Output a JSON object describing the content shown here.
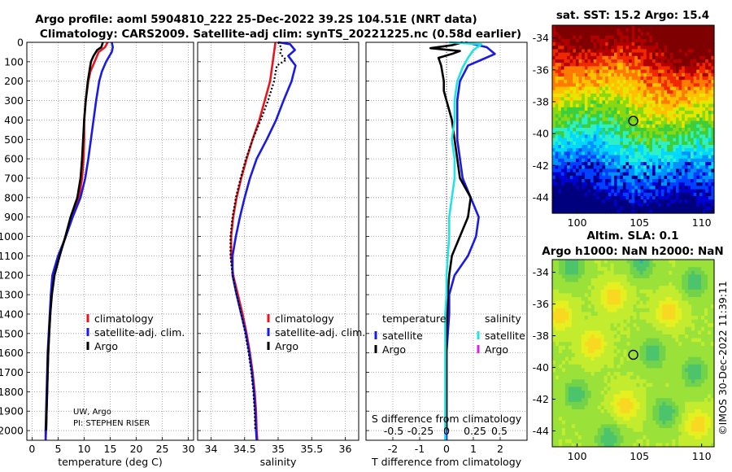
{
  "title": {
    "line1": "Argo profile: aoml 5904810_222 25-Dec-2022 39.2S 104.51E (NRT data)",
    "line2": "Climatology: CARS2009. Satellite-adj clim: synTS_20221225.nc (0.58d earlier)"
  },
  "credits": {
    "line1": "UW, Argo",
    "line2": "PI: STEPHEN RISER"
  },
  "stamp": "©IMOS 30-Dec-2022 11:39:11",
  "colors": {
    "climatology": "#e8141e",
    "satellite": "#1a1ae6",
    "argo": "#000000",
    "sat_diff_s": "#22e3e3",
    "argo_diff_s": "#e020e0"
  },
  "chart_data": [
    {
      "name": "temperature-profile",
      "type": "line",
      "xlabel": "temperature (deg C)",
      "xlim": [
        -1,
        31
      ],
      "xticks": [
        0,
        5,
        10,
        15,
        20,
        25,
        30
      ],
      "ylim": [
        0,
        2050
      ],
      "yticks": [
        0,
        100,
        200,
        300,
        400,
        500,
        600,
        700,
        800,
        900,
        1000,
        1100,
        1200,
        1300,
        1400,
        1500,
        1600,
        1700,
        1800,
        1900,
        2000
      ],
      "grid": true,
      "legend": {
        "position": "lower-right",
        "entries": [
          "climatology",
          "satellite-adj. clim.",
          "Argo"
        ]
      },
      "series": [
        {
          "name": "climatology",
          "color": "#e8141e",
          "dotted": false,
          "points": [
            [
              14.5,
              0
            ],
            [
              14.0,
              25
            ],
            [
              12.8,
              50
            ],
            [
              12.0,
              100
            ],
            [
              11.2,
              150
            ],
            [
              10.8,
              200
            ],
            [
              10.3,
              300
            ],
            [
              10.0,
              400
            ],
            [
              10.0,
              500
            ],
            [
              9.9,
              600
            ],
            [
              9.6,
              700
            ],
            [
              9.0,
              800
            ],
            [
              7.6,
              900
            ],
            [
              6.5,
              1000
            ],
            [
              5.2,
              1100
            ],
            [
              4.0,
              1200
            ],
            [
              3.7,
              1300
            ],
            [
              3.5,
              1400
            ],
            [
              3.3,
              1500
            ],
            [
              3.1,
              1600
            ],
            [
              3.0,
              1700
            ],
            [
              2.9,
              1800
            ],
            [
              2.8,
              1900
            ],
            [
              2.7,
              2000
            ],
            [
              2.6,
              2050
            ]
          ]
        },
        {
          "name": "satellite-adj. clim.",
          "color": "#1a1ae6",
          "dotted": false,
          "points": [
            [
              15.3,
              0
            ],
            [
              15.5,
              25
            ],
            [
              15.3,
              50
            ],
            [
              14.2,
              100
            ],
            [
              13.4,
              150
            ],
            [
              12.9,
              200
            ],
            [
              12.3,
              300
            ],
            [
              11.8,
              400
            ],
            [
              11.3,
              500
            ],
            [
              10.8,
              600
            ],
            [
              10.2,
              700
            ],
            [
              9.3,
              800
            ],
            [
              7.8,
              900
            ],
            [
              6.5,
              1000
            ],
            [
              5.0,
              1100
            ],
            [
              3.9,
              1200
            ],
            [
              3.6,
              1300
            ],
            [
              3.4,
              1400
            ],
            [
              3.2,
              1500
            ],
            [
              3.0,
              1600
            ],
            [
              2.9,
              1700
            ],
            [
              2.8,
              1800
            ],
            [
              2.7,
              1900
            ],
            [
              2.6,
              2000
            ],
            [
              2.6,
              2050
            ]
          ]
        },
        {
          "name": "Argo",
          "color": "#000000",
          "dotted": false,
          "points": [
            [
              13.6,
              0
            ],
            [
              13.3,
              25
            ],
            [
              12.5,
              40
            ],
            [
              11.8,
              70
            ],
            [
              11.3,
              100
            ],
            [
              11.0,
              150
            ],
            [
              10.7,
              200
            ],
            [
              10.3,
              300
            ],
            [
              10.0,
              400
            ],
            [
              9.8,
              500
            ],
            [
              9.6,
              600
            ],
            [
              9.3,
              700
            ],
            [
              8.7,
              800
            ],
            [
              7.4,
              900
            ],
            [
              6.4,
              1000
            ],
            [
              5.3,
              1100
            ],
            [
              4.3,
              1200
            ],
            [
              3.8,
              1300
            ],
            [
              3.5,
              1400
            ],
            [
              3.3,
              1500
            ],
            [
              3.1,
              1600
            ],
            [
              3.0,
              1700
            ],
            [
              2.9,
              1800
            ],
            [
              2.8,
              1900
            ],
            [
              2.7,
              2000
            ]
          ]
        }
      ]
    },
    {
      "name": "salinity-profile",
      "type": "line",
      "xlabel": "salinity",
      "xlim": [
        33.8,
        36.2
      ],
      "xticks": [
        34,
        34.5,
        35,
        35.5,
        36
      ],
      "ylim": [
        0,
        2050
      ],
      "grid": true,
      "legend": {
        "position": "lower-right",
        "entries": [
          "climatology",
          "satellite-adj. clim.",
          "Argo"
        ]
      },
      "series": [
        {
          "name": "climatology",
          "color": "#e8141e",
          "dotted": false,
          "points": [
            [
              34.96,
              0
            ],
            [
              34.94,
              50
            ],
            [
              34.92,
              100
            ],
            [
              34.88,
              200
            ],
            [
              34.8,
              300
            ],
            [
              34.72,
              400
            ],
            [
              34.62,
              500
            ],
            [
              34.53,
              600
            ],
            [
              34.45,
              700
            ],
            [
              34.38,
              800
            ],
            [
              34.33,
              900
            ],
            [
              34.3,
              1000
            ],
            [
              34.3,
              1100
            ],
            [
              34.33,
              1200
            ],
            [
              34.4,
              1300
            ],
            [
              34.47,
              1400
            ],
            [
              34.53,
              1500
            ],
            [
              34.58,
              1600
            ],
            [
              34.62,
              1700
            ],
            [
              34.65,
              1800
            ],
            [
              34.67,
              1900
            ],
            [
              34.68,
              2000
            ],
            [
              34.69,
              2050
            ]
          ]
        },
        {
          "name": "satellite-adj. clim.",
          "color": "#1a1ae6",
          "dotted": false,
          "points": [
            [
              35.0,
              0
            ],
            [
              35.18,
              10
            ],
            [
              35.25,
              40
            ],
            [
              35.15,
              70
            ],
            [
              35.26,
              120
            ],
            [
              35.2,
              200
            ],
            [
              35.08,
              300
            ],
            [
              34.97,
              400
            ],
            [
              34.83,
              500
            ],
            [
              34.68,
              600
            ],
            [
              34.58,
              700
            ],
            [
              34.5,
              800
            ],
            [
              34.43,
              900
            ],
            [
              34.37,
              1000
            ],
            [
              34.32,
              1100
            ],
            [
              34.32,
              1200
            ],
            [
              34.38,
              1300
            ],
            [
              34.45,
              1400
            ],
            [
              34.52,
              1500
            ],
            [
              34.57,
              1600
            ],
            [
              34.61,
              1700
            ],
            [
              34.64,
              1800
            ],
            [
              34.66,
              1900
            ],
            [
              34.67,
              2000
            ],
            [
              34.68,
              2050
            ]
          ]
        },
        {
          "name": "Argo",
          "color": "#000000",
          "dotted": true,
          "points": [
            [
              35.0,
              0
            ],
            [
              35.05,
              30
            ],
            [
              35.03,
              60
            ],
            [
              35.12,
              90
            ],
            [
              34.98,
              120
            ],
            [
              34.94,
              200
            ],
            [
              34.85,
              300
            ],
            [
              34.74,
              400
            ],
            [
              34.62,
              500
            ],
            [
              34.52,
              600
            ],
            [
              34.44,
              700
            ],
            [
              34.37,
              800
            ],
            [
              34.32,
              900
            ],
            [
              34.29,
              1000
            ],
            [
              34.29,
              1100
            ],
            [
              34.32,
              1200
            ],
            [
              34.38,
              1300
            ],
            [
              34.45,
              1400
            ],
            [
              34.51,
              1500
            ],
            [
              34.56,
              1600
            ],
            [
              34.6,
              1700
            ],
            [
              34.63,
              1800
            ],
            [
              34.65,
              1900
            ],
            [
              34.66,
              2000
            ]
          ]
        }
      ]
    },
    {
      "name": "difference-profile",
      "type": "line",
      "xlabel": "T difference from climatology",
      "xlim": [
        -3,
        3
      ],
      "xticks": [
        -2,
        -1,
        0,
        1,
        2
      ],
      "secondary_axis_label": "S difference from climatology",
      "secondary_ticks": [
        "-0.5",
        "-0.25",
        "0",
        "0.25",
        "0.5"
      ],
      "ylim": [
        0,
        2050
      ],
      "grid": true,
      "legend_groups": [
        {
          "title": "temperature",
          "entries": [
            "satellite",
            "Argo"
          ]
        },
        {
          "title": "salinity",
          "entries": [
            "satellite",
            "Argo"
          ]
        }
      ],
      "series": [
        {
          "name": "T satellite",
          "color": "#1a1ae6",
          "dotted": false,
          "points": [
            [
              0.7,
              0
            ],
            [
              1.5,
              25
            ],
            [
              1.8,
              60
            ],
            [
              1.3,
              90
            ],
            [
              0.8,
              120
            ],
            [
              0.5,
              200
            ],
            [
              0.4,
              300
            ],
            [
              0.4,
              400
            ],
            [
              0.4,
              500
            ],
            [
              0.5,
              600
            ],
            [
              0.6,
              700
            ],
            [
              0.9,
              800
            ],
            [
              1.2,
              900
            ],
            [
              1.1,
              1000
            ],
            [
              0.8,
              1100
            ],
            [
              0.3,
              1200
            ],
            [
              0.1,
              1300
            ],
            [
              0.1,
              1400
            ],
            [
              0.05,
              1500
            ],
            [
              0.0,
              1600
            ],
            [
              0.0,
              1700
            ],
            [
              0.0,
              1800
            ],
            [
              0.0,
              1900
            ],
            [
              0.0,
              2000
            ],
            [
              0.0,
              2050
            ]
          ]
        },
        {
          "name": "T Argo",
          "color": "#000000",
          "dotted": false,
          "points": [
            [
              0.6,
              0
            ],
            [
              0.2,
              15
            ],
            [
              -0.6,
              30
            ],
            [
              0.5,
              45
            ],
            [
              0.2,
              60
            ],
            [
              -0.3,
              80
            ],
            [
              -0.2,
              120
            ],
            [
              -0.1,
              200
            ],
            [
              -0.1,
              250
            ],
            [
              0.0,
              300
            ],
            [
              0.1,
              350
            ],
            [
              0.2,
              400
            ],
            [
              0.3,
              500
            ],
            [
              0.4,
              600
            ],
            [
              0.5,
              700
            ],
            [
              0.9,
              800
            ],
            [
              0.8,
              900
            ],
            [
              0.5,
              1000
            ],
            [
              0.2,
              1100
            ],
            [
              0.1,
              1200
            ],
            [
              0.05,
              1300
            ],
            [
              0.0,
              1500
            ],
            [
              0.0,
              1700
            ],
            [
              0.0,
              1900
            ],
            [
              0.0,
              2000
            ]
          ]
        },
        {
          "name": "S satellite",
          "color": "#22e3e3",
          "dotted": false,
          "points": [
            [
              0.1,
              0
            ],
            [
              1.3,
              10
            ],
            [
              1.0,
              40
            ],
            [
              0.8,
              80
            ],
            [
              0.6,
              130
            ],
            [
              0.4,
              200
            ],
            [
              0.3,
              300
            ],
            [
              0.3,
              400
            ],
            [
              0.2,
              500
            ],
            [
              0.3,
              600
            ],
            [
              0.3,
              700
            ],
            [
              0.2,
              800
            ],
            [
              0.1,
              900
            ],
            [
              0.1,
              1000
            ],
            [
              0.05,
              1100
            ],
            [
              0.0,
              1200
            ],
            [
              0.0,
              1300
            ],
            [
              -0.05,
              1400
            ],
            [
              -0.05,
              1500
            ],
            [
              -0.05,
              1600
            ],
            [
              -0.05,
              1700
            ],
            [
              -0.05,
              1800
            ],
            [
              -0.05,
              1900
            ],
            [
              -0.05,
              2000
            ],
            [
              -0.05,
              2050
            ]
          ]
        }
      ]
    },
    {
      "name": "sst-map",
      "type": "heatmap",
      "title": "sat. SST: 15.2 Argo: 15.4",
      "xticks": [
        100,
        105,
        110
      ],
      "yticks": [
        -34,
        -36,
        -38,
        -40,
        -42,
        -44
      ],
      "xlim": [
        98,
        111
      ],
      "ylim": [
        -45,
        -33.2
      ],
      "marker": [
        104.51,
        -39.2
      ]
    },
    {
      "name": "sla-map",
      "type": "heatmap",
      "title_line1": "Altim. SLA: 0.1",
      "title_line2": "Argo h1000: NaN h2000: NaN",
      "xticks": [
        100,
        105,
        110
      ],
      "yticks": [
        -34,
        -36,
        -38,
        -40,
        -42,
        -44
      ],
      "xlim": [
        98,
        111
      ],
      "ylim": [
        -45,
        -33.2
      ],
      "marker": [
        104.51,
        -39.2
      ]
    }
  ]
}
